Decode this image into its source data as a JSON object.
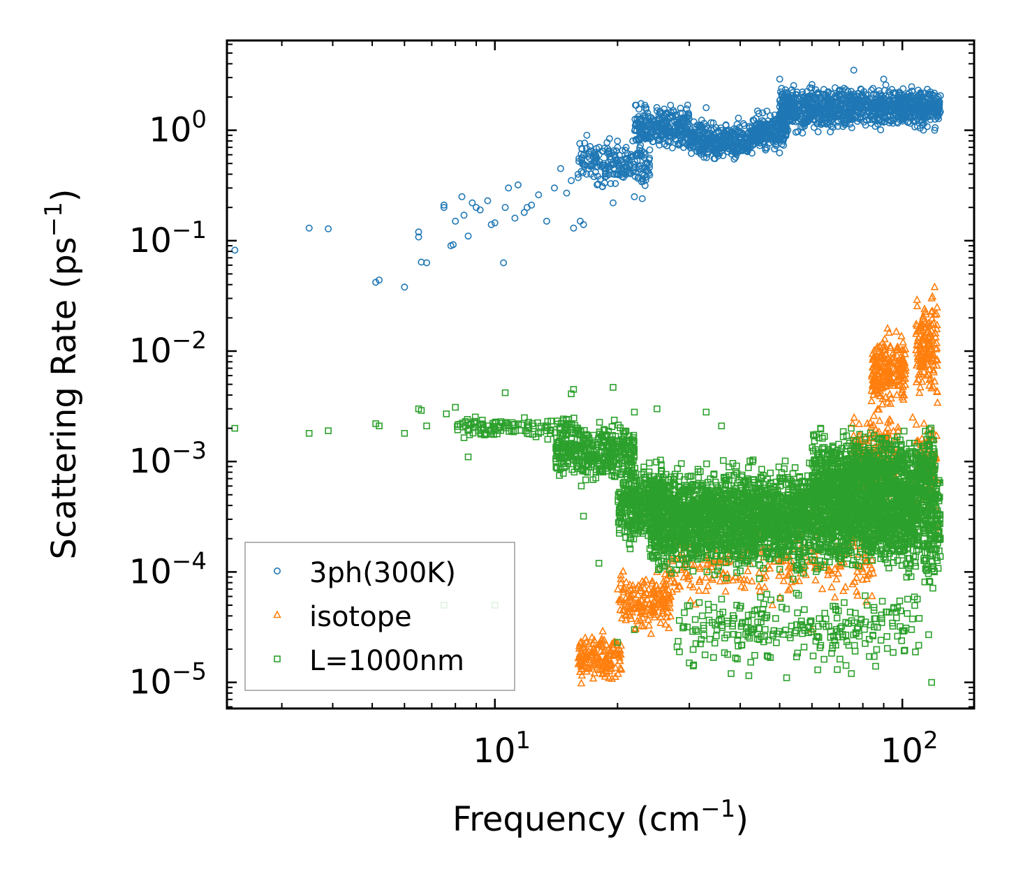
{
  "chart_data": {
    "type": "scatter",
    "title": "",
    "xlabel": "Frequency (cm",
    "xlabel_sup": "−1",
    "xlabel_end": ")",
    "ylabel": "Scattering Rate (ps",
    "ylabel_sup": "−1",
    "ylabel_end": ")",
    "xscale": "log",
    "yscale": "log",
    "xlim": [
      2.2,
      150
    ],
    "ylim": [
      5.8e-06,
      6.5
    ],
    "xticks": [
      {
        "value": 10,
        "base": "10",
        "exp": "1"
      },
      {
        "value": 100,
        "base": "10",
        "exp": "2"
      }
    ],
    "yticks": [
      {
        "value": 1,
        "base": "10",
        "exp": "0"
      },
      {
        "value": 0.1,
        "base": "10",
        "exp": "−1"
      },
      {
        "value": 0.01,
        "base": "10",
        "exp": "−2"
      },
      {
        "value": 0.001,
        "base": "10",
        "exp": "−3"
      },
      {
        "value": 0.0001,
        "base": "10",
        "exp": "−4"
      },
      {
        "value": 1e-05,
        "base": "10",
        "exp": "−5"
      }
    ],
    "legend_position": "lower-left",
    "series": [
      {
        "name": "3ph(300K)",
        "marker": "circle",
        "color": "#1f77b4",
        "points": [
          [
            2.3,
            0.082
          ],
          [
            3.5,
            0.13
          ],
          [
            3.9,
            0.128
          ],
          [
            5.1,
            0.042
          ],
          [
            5.2,
            0.044
          ],
          [
            6.0,
            0.038
          ],
          [
            6.5,
            0.12
          ],
          [
            6.5,
            0.108
          ],
          [
            6.6,
            0.064
          ],
          [
            6.8,
            0.063
          ],
          [
            7.5,
            0.21
          ],
          [
            7.5,
            0.2
          ],
          [
            7.8,
            0.09
          ],
          [
            7.9,
            0.092
          ],
          [
            8.0,
            0.15
          ],
          [
            8.3,
            0.25
          ],
          [
            8.4,
            0.17
          ],
          [
            8.6,
            0.11
          ],
          [
            8.8,
            0.22
          ],
          [
            9.0,
            0.2
          ],
          [
            9.2,
            0.19
          ],
          [
            9.6,
            0.23
          ],
          [
            9.8,
            0.14
          ],
          [
            10.0,
            0.145
          ],
          [
            10.5,
            0.063
          ],
          [
            10.6,
            0.2
          ],
          [
            10.8,
            0.3
          ],
          [
            11.2,
            0.16
          ],
          [
            11.4,
            0.32
          ],
          [
            11.8,
            0.18
          ],
          [
            12.0,
            0.2
          ],
          [
            12.3,
            0.21
          ],
          [
            12.8,
            0.26
          ],
          [
            13.4,
            0.15
          ],
          [
            14.0,
            0.3
          ],
          [
            14.5,
            0.45
          ],
          [
            15.0,
            0.27
          ],
          [
            15.4,
            0.35
          ],
          [
            15.6,
            0.13
          ],
          [
            16.0,
            0.4
          ],
          [
            16.2,
            0.15
          ],
          [
            16.5,
            0.14
          ],
          [
            17.0,
            0.45
          ],
          [
            17.5,
            0.38
          ],
          [
            18.0,
            0.6
          ],
          [
            18.5,
            0.5
          ],
          [
            19.0,
            0.65
          ],
          [
            19.5,
            0.22
          ],
          [
            20.0,
            0.7
          ],
          [
            20.5,
            0.4
          ],
          [
            21.0,
            0.7
          ],
          [
            22.0,
            0.25
          ],
          [
            23.0,
            0.24
          ],
          [
            25.0,
            1.5
          ],
          [
            27.0,
            1.3
          ],
          [
            30.0,
            0.9
          ],
          [
            33.0,
            1.6
          ],
          [
            36.0,
            0.9
          ],
          [
            40.0,
            0.65
          ],
          [
            44.0,
            0.8
          ],
          [
            48.0,
            1.2
          ],
          [
            50.0,
            2.9
          ],
          [
            55.0,
            2.1
          ],
          [
            60.0,
            2.6
          ],
          [
            66.0,
            1.5
          ],
          [
            72.0,
            2.4
          ],
          [
            76.0,
            3.5
          ],
          [
            82.0,
            1.4
          ],
          [
            90.0,
            2.9
          ],
          [
            100.0,
            1.8
          ],
          [
            110.0,
            2.1
          ],
          [
            120.0,
            1.0
          ]
        ],
        "clusters": [
          {
            "x": [
              16.0,
              24.0
            ],
            "y": [
              0.26,
              1.0
            ],
            "n": 200
          },
          {
            "x": [
              22.0,
              30.0
            ],
            "y": [
              0.6,
              1.9
            ],
            "n": 280
          },
          {
            "x": [
              30.0,
              43.0
            ],
            "y": [
              0.5,
              1.35
            ],
            "n": 340
          },
          {
            "x": [
              43.0,
              52.0
            ],
            "y": [
              0.6,
              1.6
            ],
            "n": 220
          },
          {
            "x": [
              50.0,
              75.0
            ],
            "y": [
              0.85,
              2.9
            ],
            "n": 480
          },
          {
            "x": [
              75.0,
              124.0
            ],
            "y": [
              0.95,
              2.7
            ],
            "n": 560
          }
        ]
      },
      {
        "name": "isotope",
        "marker": "triangle",
        "color": "#ff7f0e",
        "points": [
          [
            16.3,
            9.8e-06
          ],
          [
            16.8,
            1.25e-05
          ],
          [
            17.5,
            1.5e-05
          ],
          [
            18.4,
            2.9e-05
          ],
          [
            19.2,
            1.95e-05
          ],
          [
            20.4,
            2.15e-05
          ],
          [
            21.5,
            4e-05
          ],
          [
            23.0,
            8.2e-05
          ],
          [
            25.0,
            0.0001
          ],
          [
            27.0,
            6e-05
          ],
          [
            35.0,
            0.00012
          ],
          [
            48.0,
            5e-05
          ],
          [
            60.0,
            3e-05
          ],
          [
            72.0,
            0.0006
          ],
          [
            82.0,
            0.0022
          ],
          [
            88.0,
            0.011
          ],
          [
            92.0,
            0.016
          ],
          [
            95.0,
            0.0058
          ],
          [
            100.0,
            0.0038
          ],
          [
            106.0,
            0.0025
          ],
          [
            110.0,
            0.0009
          ],
          [
            113.0,
            0.0022
          ],
          [
            116.0,
            0.0085
          ],
          [
            118.0,
            0.03
          ],
          [
            120.0,
            0.038
          ],
          [
            122.0,
            0.0034
          ],
          [
            123.0,
            0.00025
          ]
        ],
        "clusters": [
          {
            "x": [
              16.0,
              20.5
            ],
            "y": [
              9.5e-06,
              3e-05
            ],
            "n": 150
          },
          {
            "x": [
              20.0,
              27.0
            ],
            "y": [
              2.5e-05,
              0.00011
            ],
            "n": 170
          },
          {
            "x": [
              26.0,
              85.0
            ],
            "y": [
              4e-05,
              0.00035
            ],
            "n": 260
          },
          {
            "x": [
              75.0,
              98.0
            ],
            "y": [
              0.0003,
              0.004
            ],
            "n": 200
          },
          {
            "x": [
              84.0,
              102.0
            ],
            "y": [
              0.0025,
              0.017
            ],
            "n": 220
          },
          {
            "x": [
              108.0,
              122.0
            ],
            "y": [
              0.003,
              0.04
            ],
            "n": 150
          },
          {
            "x": [
              108.0,
              122.0
            ],
            "y": [
              0.0003,
              0.003
            ],
            "n": 80
          }
        ]
      },
      {
        "name": "L=1000nm",
        "marker": "square",
        "color": "#2ca02c",
        "points": [
          [
            2.3,
            0.002
          ],
          [
            3.5,
            0.0018
          ],
          [
            3.9,
            0.0019
          ],
          [
            5.1,
            0.0022
          ],
          [
            5.2,
            0.0021
          ],
          [
            6.0,
            0.0018
          ],
          [
            6.5,
            0.003
          ],
          [
            6.6,
            0.0029
          ],
          [
            6.8,
            0.0021
          ],
          [
            7.5,
            5e-05
          ],
          [
            7.6,
            0.0027
          ],
          [
            8.0,
            0.0031
          ],
          [
            8.6,
            0.0011
          ],
          [
            10.0,
            5e-05
          ],
          [
            10.6,
            0.0042
          ],
          [
            12.0,
            0.0018
          ],
          [
            15.4,
            0.0041
          ],
          [
            15.6,
            0.0045
          ],
          [
            16.5,
            0.00032
          ],
          [
            19.5,
            0.0047
          ],
          [
            22.0,
            0.0028
          ],
          [
            25.0,
            0.003
          ],
          [
            33.0,
            0.0028
          ],
          [
            36.0,
            0.0021
          ],
          [
            18.0,
            0.00012
          ],
          [
            16.3,
            0.0006
          ],
          [
            30.0,
            1.5e-05
          ],
          [
            38.0,
            1.2e-05
          ],
          [
            42.0,
            1.15e-05
          ],
          [
            52.0,
            1.1e-05
          ],
          [
            62.0,
            1.3e-05
          ],
          [
            75.0,
            1.2e-05
          ],
          [
            86.0,
            1.4e-05
          ],
          [
            118.0,
            1e-05
          ],
          [
            116.0,
            2.7e-05
          ],
          [
            110.0,
            3.8e-05
          ],
          [
            20.0,
            2.3e-05
          ],
          [
            22.0,
            3e-05
          ],
          [
            28.0,
            2.1e-05
          ],
          [
            45.0,
            2.6e-05
          ],
          [
            55.0,
            1.7e-05
          ],
          [
            65.0,
            3.2e-05
          ]
        ],
        "clusters": [
          {
            "x": [
              8.0,
              16.0
            ],
            "y": [
              0.0015,
              0.0028
            ],
            "n": 120
          },
          {
            "x": [
              14.0,
              22.0
            ],
            "y": [
              0.0006,
              0.0027
            ],
            "n": 380
          },
          {
            "x": [
              20.0,
              26.0
            ],
            "y": [
              0.00015,
              0.0012
            ],
            "n": 420
          },
          {
            "x": [
              24.0,
              110.0
            ],
            "y": [
              8e-05,
              0.0012
            ],
            "n": 3400
          },
          {
            "x": [
              60.0,
              120.0
            ],
            "y": [
              0.0003,
              0.0022
            ],
            "n": 900
          },
          {
            "x": [
              28.0,
              110.0
            ],
            "y": [
              1.2e-05,
              8e-05
            ],
            "n": 260
          },
          {
            "x": [
              112.0,
              124.0
            ],
            "y": [
              6e-05,
              0.0012
            ],
            "n": 180
          }
        ]
      }
    ]
  }
}
